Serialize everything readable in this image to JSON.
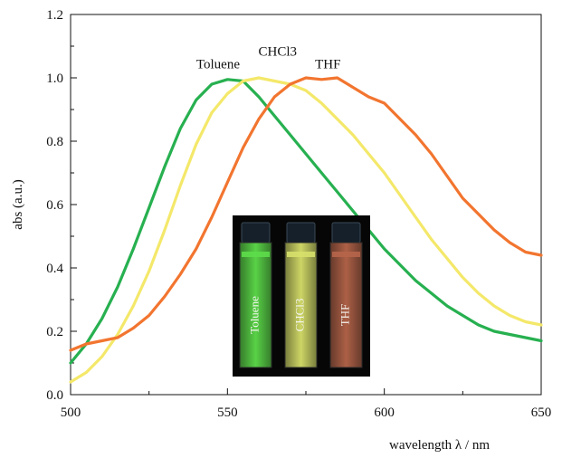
{
  "chart_data": {
    "type": "line",
    "title": "",
    "xlabel": "wavelength λ / nm",
    "ylabel": "abs (a.u.)",
    "xlim": [
      500,
      650
    ],
    "ylim": [
      0,
      1.2
    ],
    "x_ticks": [
      500,
      550,
      600,
      650
    ],
    "y_ticks": [
      0.0,
      0.2,
      0.4,
      0.6,
      0.8,
      1.0,
      1.2
    ],
    "x_tick_labels": [
      "500",
      "550",
      "600",
      "650"
    ],
    "y_tick_labels": [
      "0.0",
      "0.2",
      "0.4",
      "0.6",
      "0.8",
      "1.0",
      "1.2"
    ],
    "grid": false,
    "series": [
      {
        "name": "Toluene",
        "color": "#27b050",
        "x": [
          500,
          505,
          510,
          515,
          520,
          525,
          530,
          535,
          540,
          545,
          550,
          555,
          560,
          565,
          570,
          575,
          580,
          585,
          590,
          595,
          600,
          605,
          610,
          615,
          620,
          625,
          630,
          635,
          640,
          645,
          650
        ],
        "y": [
          0.1,
          0.16,
          0.24,
          0.34,
          0.46,
          0.59,
          0.72,
          0.84,
          0.93,
          0.98,
          0.995,
          0.99,
          0.94,
          0.88,
          0.82,
          0.76,
          0.7,
          0.64,
          0.58,
          0.52,
          0.46,
          0.41,
          0.36,
          0.32,
          0.28,
          0.25,
          0.22,
          0.2,
          0.19,
          0.18,
          0.17
        ]
      },
      {
        "name": "CHCl3",
        "color": "#f4e86a",
        "x": [
          500,
          505,
          510,
          515,
          520,
          525,
          530,
          535,
          540,
          545,
          550,
          555,
          560,
          565,
          570,
          575,
          580,
          585,
          590,
          595,
          600,
          605,
          610,
          615,
          620,
          625,
          630,
          635,
          640,
          645,
          650
        ],
        "y": [
          0.04,
          0.07,
          0.12,
          0.19,
          0.28,
          0.39,
          0.52,
          0.66,
          0.79,
          0.89,
          0.95,
          0.99,
          1.0,
          0.99,
          0.98,
          0.96,
          0.92,
          0.87,
          0.82,
          0.76,
          0.7,
          0.63,
          0.56,
          0.49,
          0.43,
          0.37,
          0.32,
          0.28,
          0.25,
          0.23,
          0.22
        ]
      },
      {
        "name": "THF",
        "color": "#f2752f",
        "x": [
          500,
          505,
          510,
          515,
          520,
          525,
          530,
          535,
          540,
          545,
          550,
          555,
          560,
          565,
          570,
          575,
          580,
          585,
          590,
          595,
          600,
          605,
          610,
          615,
          620,
          625,
          630,
          635,
          640,
          645,
          650
        ],
        "y": [
          0.14,
          0.16,
          0.17,
          0.18,
          0.21,
          0.25,
          0.31,
          0.38,
          0.46,
          0.56,
          0.67,
          0.78,
          0.87,
          0.94,
          0.98,
          1.0,
          0.995,
          1.0,
          0.97,
          0.94,
          0.92,
          0.87,
          0.82,
          0.76,
          0.69,
          0.62,
          0.57,
          0.52,
          0.48,
          0.45,
          0.44
        ]
      }
    ],
    "annotations": [
      {
        "text": "Toluene",
        "x": 547,
        "y": 1.03
      },
      {
        "text": "CHCl3",
        "x": 566,
        "y": 1.07
      },
      {
        "text": "THF",
        "x": 582,
        "y": 1.03
      }
    ],
    "inset_photo": {
      "vials": [
        {
          "label": "Toluene",
          "color": "#5ddd4a"
        },
        {
          "label": "CHCl3",
          "color": "#d7e06a"
        },
        {
          "label": "THF",
          "color": "#b6654a"
        }
      ]
    }
  }
}
